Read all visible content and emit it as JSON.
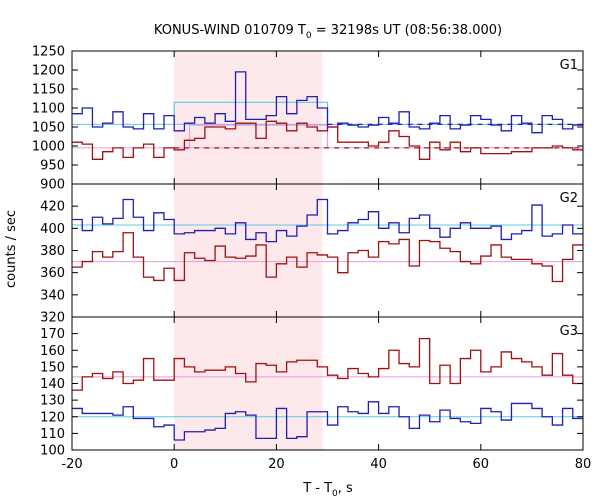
{
  "chart_data": {
    "type": "line",
    "title": "KONUS-WIND 010709 T₀ = 32198s UT (08:56:38.000)",
    "title_parts": {
      "pre": "KONUS-WIND 010709 T",
      "sub": "0",
      "post": " = 32198s UT (08:56:38.000)"
    },
    "xlabel_parts": {
      "pre": "T - T",
      "sub": "0",
      "post": ", s"
    },
    "ylabel": "counts / sec",
    "x_ticks": [
      -20,
      0,
      20,
      40,
      60,
      80
    ],
    "x_range": [
      -20,
      80
    ],
    "highlight_interval": [
      0,
      29
    ],
    "colors": {
      "blue": "#1f1fb4",
      "red": "#a01010",
      "cyan": "#5fc8e6",
      "pink": "#e89ae0",
      "highlight": "#fde8ec"
    },
    "panels": [
      {
        "name": "G1",
        "ylim": [
          900,
          1250
        ],
        "y_ticks": [
          900,
          950,
          1000,
          1050,
          1100,
          1150,
          1200,
          1250
        ],
        "bin_edges": [
          -20,
          -18,
          -16,
          -14,
          -12,
          -10,
          -8,
          -6,
          -4,
          -2,
          0,
          2,
          4,
          6,
          8,
          10,
          12,
          14,
          16,
          18,
          20,
          22,
          24,
          26,
          28,
          30,
          32,
          34,
          36,
          38,
          40,
          42,
          44,
          46,
          48,
          50,
          52,
          54,
          56,
          58,
          60,
          62,
          64,
          66,
          68,
          70,
          72,
          74,
          76,
          78,
          80
        ],
        "series": [
          {
            "color": "blue",
            "values": [
              1085,
              1100,
              1050,
              1060,
              1090,
              1050,
              1045,
              1085,
              1045,
              1080,
              1040,
              1060,
              1075,
              1060,
              1085,
              1065,
              1195,
              1070,
              1070,
              1080,
              1130,
              1085,
              1120,
              1130,
              1100,
              1050,
              1060,
              1055,
              1050,
              1055,
              1075,
              1060,
              1090,
              1050,
              1045,
              1060,
              1080,
              1045,
              1055,
              1080,
              1070,
              1055,
              1040,
              1080,
              1060,
              1035,
              1080,
              1070,
              1045,
              1055
            ]
          },
          {
            "color": "red",
            "values": [
              1010,
              1005,
              965,
              985,
              995,
              970,
              995,
              1005,
              970,
              995,
              990,
              1015,
              1020,
              1050,
              1050,
              1045,
              1060,
              1060,
              1020,
              1065,
              1060,
              1040,
              1060,
              1050,
              1040,
              1050,
              1010,
              1010,
              1010,
              1000,
              1010,
              1040,
              1025,
              1000,
              965,
              1010,
              990,
              1010,
              985,
              995,
              980,
              980,
              980,
              985,
              985,
              995,
              995,
              1000,
              995,
              990
            ]
          }
        ],
        "refs": [
          {
            "color": "cyan",
            "value": 1057,
            "from": -20,
            "to": 80
          },
          {
            "color": "pink",
            "value": 995,
            "from": -20,
            "to": 80
          }
        ],
        "steps": [
          {
            "color": "cyan",
            "from": 0,
            "to": 30,
            "value": 1115,
            "base": 1057
          },
          {
            "color": "pink",
            "from": 3,
            "to": 30,
            "value": 1055,
            "base": 995
          }
        ],
        "dashed": [
          {
            "color": "blue",
            "from": 30,
            "to": 80,
            "value": 1057
          },
          {
            "color": "red",
            "from": 0,
            "to": 80,
            "value": 995
          }
        ]
      },
      {
        "name": "G2",
        "ylim": [
          320,
          440
        ],
        "y_ticks": [
          320,
          340,
          360,
          380,
          400,
          420
        ],
        "bin_edges": [
          -20,
          -18,
          -16,
          -14,
          -12,
          -10,
          -8,
          -6,
          -4,
          -2,
          0,
          2,
          4,
          6,
          8,
          10,
          12,
          14,
          16,
          18,
          20,
          22,
          24,
          26,
          28,
          30,
          32,
          34,
          36,
          38,
          40,
          42,
          44,
          46,
          48,
          50,
          52,
          54,
          56,
          58,
          60,
          62,
          64,
          66,
          68,
          70,
          72,
          74,
          76,
          78,
          80
        ],
        "series": [
          {
            "color": "blue",
            "values": [
              408,
              398,
              410,
              404,
              409,
              426,
              410,
              398,
              414,
              408,
              395,
              396,
              398,
              398,
              400,
              395,
              405,
              390,
              396,
              388,
              398,
              393,
              402,
              412,
              426,
              395,
              398,
              405,
              408,
              415,
              400,
              405,
              396,
              409,
              412,
              400,
              392,
              400,
              405,
              400,
              400,
              402,
              390,
              395,
              398,
              421,
              393,
              395,
              403,
              395
            ]
          },
          {
            "color": "red",
            "values": [
              365,
              370,
              379,
              374,
              379,
              396,
              374,
              356,
              353,
              364,
              353,
              378,
              373,
              371,
              384,
              374,
              373,
              375,
              385,
              356,
              368,
              374,
              365,
              378,
              376,
              374,
              360,
              378,
              380,
              374,
              388,
              386,
              390,
              366,
              389,
              388,
              382,
              379,
              370,
              368,
              375,
              385,
              374,
              372,
              372,
              368,
              366,
              352,
              372,
              385
            ]
          }
        ],
        "refs": [
          {
            "color": "cyan",
            "value": 403,
            "from": -20,
            "to": 80
          },
          {
            "color": "pink",
            "value": 370,
            "from": -20,
            "to": 80
          }
        ]
      },
      {
        "name": "G3",
        "ylim": [
          100,
          180
        ],
        "y_ticks": [
          100,
          110,
          120,
          130,
          140,
          150,
          160,
          170
        ],
        "bin_edges": [
          -20,
          -18,
          -16,
          -14,
          -12,
          -10,
          -8,
          -6,
          -4,
          -2,
          0,
          2,
          4,
          6,
          8,
          10,
          12,
          14,
          16,
          18,
          20,
          22,
          24,
          26,
          28,
          30,
          32,
          34,
          36,
          38,
          40,
          42,
          44,
          46,
          48,
          50,
          52,
          54,
          56,
          58,
          60,
          62,
          64,
          66,
          68,
          70,
          72,
          74,
          76,
          78,
          80
        ],
        "series": [
          {
            "color": "blue",
            "values": [
              125,
              122,
              122,
              122,
              121,
              126,
              119,
              119,
              114,
              115,
              106,
              111,
              111,
              112,
              113,
              122,
              123,
              121,
              107,
              107,
              125,
              107,
              108,
              123,
              123,
              115,
              126,
              123,
              122,
              129,
              122,
              126,
              120,
              113,
              121,
              117,
              124,
              119,
              117,
              116,
              125,
              123,
              118,
              128,
              128,
              125,
              120,
              115,
              125,
              119
            ]
          },
          {
            "color": "red",
            "values": [
              136,
              144,
              146,
              143,
              147,
              140,
              142,
              155,
              142,
              142,
              155,
              150,
              147,
              148,
              148,
              150,
              146,
              141,
              152,
              151,
              147,
              153,
              154,
              154,
              150,
              145,
              143,
              149,
              146,
              144,
              149,
              160,
              152,
              150,
              167,
              140,
              151,
              140,
              155,
              160,
              147,
              150,
              159,
              155,
              153,
              150,
              145,
              158,
              145,
              140
            ]
          }
        ],
        "refs": [
          {
            "color": "cyan",
            "value": 120,
            "from": -20,
            "to": 80
          },
          {
            "color": "pink",
            "value": 144,
            "from": -20,
            "to": 80
          }
        ]
      }
    ]
  }
}
